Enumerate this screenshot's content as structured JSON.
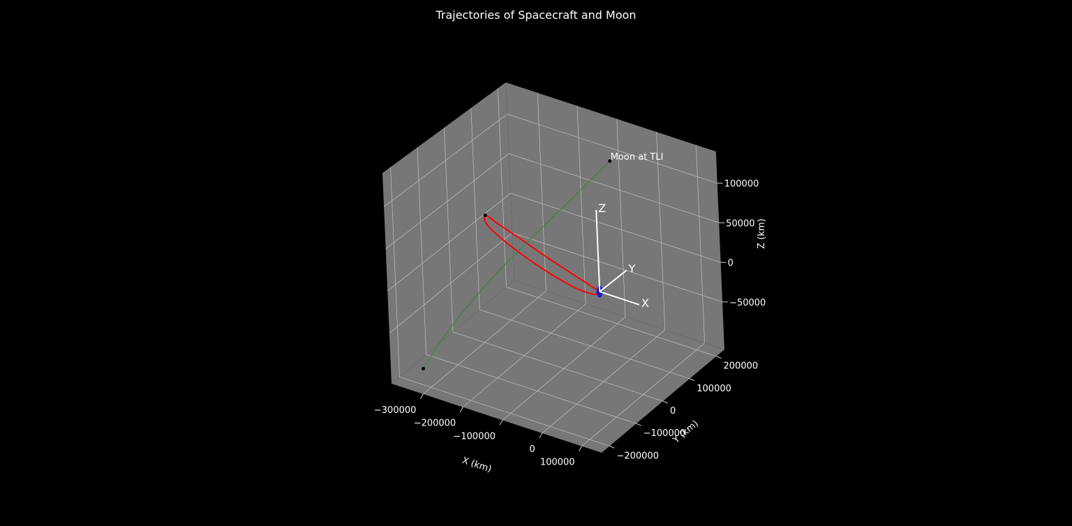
{
  "chart_data": {
    "type": "line",
    "projection": "3d",
    "title": "Trajectories of Spacecraft and Moon",
    "xlabel": "X (km)",
    "ylabel": "Y (km)",
    "zlabel": "Z (km)",
    "x_ticks": [
      {
        "value": -300000,
        "label": "−300000"
      },
      {
        "value": -200000,
        "label": "−200000"
      },
      {
        "value": -100000,
        "label": "−100000"
      },
      {
        "value": 0,
        "label": "0"
      },
      {
        "value": 100000,
        "label": "100000"
      }
    ],
    "y_ticks": [
      {
        "value": -200000,
        "label": "−200000"
      },
      {
        "value": -100000,
        "label": "−100000"
      },
      {
        "value": 0,
        "label": "0"
      },
      {
        "value": 100000,
        "label": "100000"
      },
      {
        "value": 200000,
        "label": "200000"
      }
    ],
    "z_ticks": [
      {
        "value": -50000,
        "label": "−50000"
      },
      {
        "value": 0,
        "label": "0"
      },
      {
        "value": 50000,
        "label": "50000"
      },
      {
        "value": 100000,
        "label": "100000"
      }
    ],
    "grid": true,
    "pane_color": "#777777",
    "background": "#000000",
    "series": [
      {
        "color": "#ff0000",
        "x": [
          0,
          -40000,
          -90000,
          -150000,
          -210000,
          -265000,
          -300000,
          -290000,
          -240000,
          -180000,
          -120000,
          -60000,
          -15000,
          0
        ],
        "y": [
          0,
          5000,
          9000,
          13000,
          17000,
          20000,
          22000,
          15000,
          8000,
          3000,
          -1000,
          -3000,
          -2000,
          0
        ],
        "z": [
          0,
          4000,
          10000,
          18000,
          27000,
          35000,
          40000,
          31000,
          20000,
          10000,
          2000,
          -4000,
          -5000,
          0
        ]
      },
      {
        "color": "#2e8b2e",
        "x": [
          -338000,
          -326000,
          -306000,
          -278000,
          -243000,
          -203000,
          -160000,
          -117000
        ],
        "y": [
          -172000,
          -117000,
          -59000,
          0,
          59000,
          117000,
          172000,
          222000
        ],
        "z": [
          -101000,
          -79000,
          -55000,
          -30000,
          -3000,
          25000,
          55000,
          86000
        ]
      }
    ],
    "markers": [
      {
        "color": "#000000",
        "x": -300000,
        "y": 22000,
        "z": 40000
      },
      {
        "color": "#000000",
        "x": -338000,
        "y": -172000,
        "z": -101000
      },
      {
        "color": "#000000",
        "x": -117000,
        "y": 222000,
        "z": 86000
      }
    ],
    "earth": {
      "x": 0,
      "y": 0,
      "z": 0,
      "color": "#1a1aa8"
    },
    "annotations": [
      {
        "text": "Moon at TLI",
        "x": -117000,
        "y": 222000,
        "z": 86000
      }
    ],
    "body_axes": [
      {
        "label": "X",
        "dx": 100000,
        "dy": 0,
        "dz": 0
      },
      {
        "label": "Y",
        "dx": 0,
        "dy": 100000,
        "dz": 0
      },
      {
        "label": "Z",
        "dx": 0,
        "dy": 0,
        "dz": 100000
      }
    ],
    "body_axes_color": "#ffffff"
  }
}
